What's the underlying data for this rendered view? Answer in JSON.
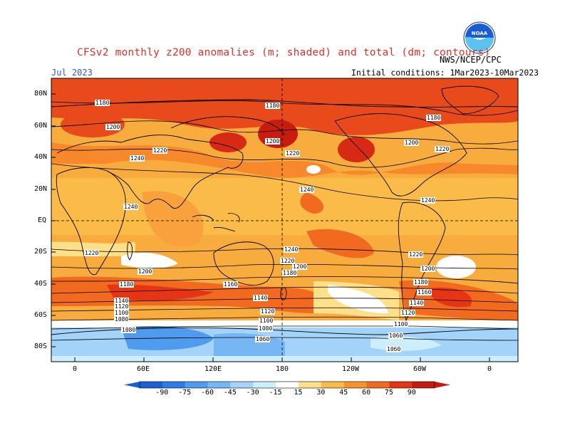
{
  "title": "CFSv2 monthly z200 anomalies (m; shaded) and total (dm; contours)",
  "agency": "NWS/NCEP/CPC",
  "valid_month": "Jul 2023",
  "initial_conditions": "Initial conditions: 1Mar2023-10Mar2023",
  "logo_text": "NOAA",
  "lat_labels": [
    "80N",
    "60N",
    "40N",
    "20N",
    "EQ",
    "20S",
    "40S",
    "60S",
    "80S"
  ],
  "lon_labels": [
    "0",
    "60E",
    "120E",
    "180",
    "120W",
    "60W",
    "0"
  ],
  "colorbar": {
    "ticks": [
      "-90",
      "-75",
      "-60",
      "-45",
      "-30",
      "-15",
      "15",
      "30",
      "45",
      "60",
      "75",
      "90"
    ],
    "colors": [
      "#1c5fd0",
      "#2e7ce8",
      "#4e9bef",
      "#76b6f5",
      "#a4d3f9",
      "#cdeefc",
      "#ffffff",
      "#fde089",
      "#fbbb48",
      "#f7932e",
      "#f26a1f",
      "#e53514",
      "#c61a10"
    ]
  },
  "contour_labels": [
    "1180",
    "1200",
    "1220",
    "1240",
    "1160",
    "1140",
    "1120",
    "1100",
    "1080",
    "1060"
  ],
  "background_color": "#f7a43b"
}
